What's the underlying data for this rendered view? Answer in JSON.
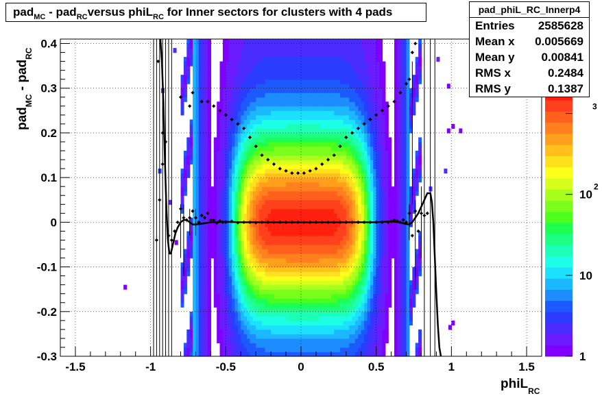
{
  "chart_data": {
    "type": "heatmap",
    "title": {
      "main": "pad",
      "sub1": "MC",
      "mid1": " - pad",
      "sub2": "RC",
      "mid2": "versus phiL",
      "sub3": "RC",
      "tail": " for Inner sectors for clusters with 4 pads"
    },
    "xlabel": {
      "main": "phiL",
      "sub": "RC"
    },
    "ylabel": {
      "main1": "pad",
      "sub1": "MC",
      "main2": " - pad",
      "sub2": "RC"
    },
    "xlim": [
      -1.6,
      1.6
    ],
    "ylim": [
      -0.3,
      0.41
    ],
    "x_ticks": [
      -1.5,
      -1,
      -0.5,
      0,
      0.5,
      1,
      1.5
    ],
    "x_tick_labels": [
      "-1.5",
      "-1",
      "-0.5",
      "0",
      "0.5",
      "1",
      "1.5"
    ],
    "y_ticks": [
      -0.3,
      -0.2,
      -0.1,
      0,
      0.1,
      0.2,
      0.3,
      0.4
    ],
    "y_tick_labels": [
      "-0.3",
      "-0.2",
      "-0.1",
      "0",
      "0.1",
      "0.2",
      "0.3",
      "0.4"
    ],
    "grid": true,
    "z_scale": "log",
    "z_range": [
      1,
      2000
    ],
    "palette": [
      "#8000ff",
      "#6a1cff",
      "#4a2cff",
      "#2a3cff",
      "#1c5aff",
      "#1c8cff",
      "#1cb8ff",
      "#1ce0ff",
      "#1cffe6",
      "#1cffb4",
      "#1cff82",
      "#1cff50",
      "#4cff1c",
      "#7aff1c",
      "#a8ff1c",
      "#d6ff1c",
      "#ffff1c",
      "#ffe01c",
      "#ffc01c",
      "#ffa01c",
      "#ff801c",
      "#ff601c",
      "#ff401c",
      "#ff2010"
    ],
    "colorbar_labels": [
      "1",
      "10",
      "10",
      "2",
      "3"
    ],
    "stats": {
      "name": "pad_phiL_RC_Innerp4",
      "rows": [
        {
          "label": "Entries",
          "value": "2585628"
        },
        {
          "label": "Mean x",
          "value": "0.005669"
        },
        {
          "label": "Mean y",
          "value": "0.00841"
        },
        {
          "label": "RMS x",
          "value": "0.2484"
        },
        {
          "label": "RMS y",
          "value": "0.1387"
        }
      ]
    },
    "series": [
      {
        "type": "profile_mean",
        "x": [
          -0.96,
          -0.94,
          -0.92,
          -0.9,
          -0.88,
          -0.86,
          -0.84,
          -0.82,
          -0.8,
          -0.78,
          -0.76,
          -0.74,
          -0.72,
          -0.7,
          -0.68,
          -0.66,
          -0.64,
          -0.62,
          -0.6,
          -0.58,
          -0.56,
          -0.54,
          -0.52,
          -0.5,
          -0.46,
          -0.42,
          -0.38,
          -0.34,
          -0.3,
          -0.26,
          -0.22,
          -0.18,
          -0.14,
          -0.1,
          -0.06,
          -0.02,
          0.02,
          0.06,
          0.1,
          0.14,
          0.18,
          0.22,
          0.26,
          0.3,
          0.34,
          0.38,
          0.42,
          0.46,
          0.5,
          0.54,
          0.58,
          0.6,
          0.62,
          0.64,
          0.66,
          0.68,
          0.7,
          0.72,
          0.74,
          0.76,
          0.78,
          0.8,
          0.82,
          0.84
        ],
        "y": [
          -0.04,
          0.05,
          0.2,
          0.18,
          -0.03,
          -0.04,
          -0.02,
          0.0,
          0.03,
          0.01,
          0.005,
          0.01,
          0.025,
          0.01,
          0.0,
          0.015,
          0.01,
          0.02,
          0.005,
          0.005,
          -0.002,
          0.003,
          0.0,
          0.0,
          0.002,
          -0.001,
          0.0,
          0.0,
          -0.001,
          0.0,
          0.0,
          0.0,
          0.0,
          0.0,
          0.0,
          0.0,
          0.0,
          0.0,
          0.0,
          0.0,
          0.0,
          0.0,
          0.0,
          0.0,
          0.0,
          0.0,
          0.0,
          0.0,
          0.0,
          0.0,
          0.0,
          0.002,
          0.005,
          0.003,
          0.0,
          0.005,
          0.0,
          0.02,
          -0.03,
          0.025,
          -0.02,
          0.02,
          0.015,
          0.02
        ]
      },
      {
        "type": "profile_rms",
        "x": [
          -0.95,
          -0.92,
          -0.8,
          -0.74,
          -0.72,
          -0.66,
          -0.62,
          -0.58,
          -0.54,
          -0.5,
          -0.46,
          -0.42,
          -0.38,
          -0.34,
          -0.3,
          -0.26,
          -0.22,
          -0.18,
          -0.14,
          -0.1,
          -0.06,
          -0.02,
          0.02,
          0.06,
          0.1,
          0.14,
          0.18,
          0.22,
          0.26,
          0.3,
          0.34,
          0.38,
          0.42,
          0.46,
          0.5,
          0.54,
          0.58,
          0.62,
          0.66,
          0.7,
          0.72,
          0.74,
          0.76
        ],
        "y": [
          0.36,
          0.13,
          0.28,
          0.26,
          0.29,
          0.27,
          0.27,
          0.26,
          0.25,
          0.24,
          0.23,
          0.22,
          0.21,
          0.19,
          0.17,
          0.15,
          0.14,
          0.13,
          0.12,
          0.115,
          0.11,
          0.11,
          0.11,
          0.115,
          0.12,
          0.13,
          0.14,
          0.15,
          0.17,
          0.19,
          0.2,
          0.21,
          0.22,
          0.23,
          0.24,
          0.25,
          0.26,
          0.27,
          0.29,
          0.31,
          0.32,
          0.38,
          0.4
        ]
      },
      {
        "type": "fit_curve",
        "x": [
          -0.935,
          -0.925,
          -0.915,
          -0.905,
          -0.895,
          -0.885,
          -0.875,
          -0.865,
          -0.855,
          -0.845,
          -0.835,
          -0.82,
          -0.8,
          -0.78,
          -0.76,
          -0.74,
          -0.72,
          -0.7,
          -0.65,
          -0.6,
          -0.5,
          -0.4,
          -0.3,
          -0.2,
          -0.1,
          0,
          0.1,
          0.2,
          0.3,
          0.4,
          0.5,
          0.6,
          0.65,
          0.7,
          0.72,
          0.74,
          0.76,
          0.78,
          0.8,
          0.82,
          0.84,
          0.86,
          0.87,
          0.88,
          0.89,
          0.9,
          0.91,
          0.92,
          0.93
        ],
        "y": [
          0.41,
          0.36,
          0.27,
          0.14,
          0.03,
          -0.04,
          -0.07,
          -0.07,
          -0.055,
          -0.04,
          -0.025,
          -0.012,
          0.0,
          0.005,
          0.005,
          0.0,
          -0.005,
          -0.005,
          -0.003,
          0.0,
          0.001,
          0.0,
          0.0,
          0.0,
          0.0,
          0.0,
          0.0,
          0.0,
          0.0,
          0.0,
          0.0,
          0.002,
          0.0,
          -0.004,
          -0.005,
          0.0,
          0.01,
          0.02,
          0.035,
          0.05,
          0.065,
          0.065,
          0.045,
          0.0,
          -0.08,
          -0.16,
          -0.23,
          -0.28,
          -0.3
        ]
      }
    ]
  }
}
